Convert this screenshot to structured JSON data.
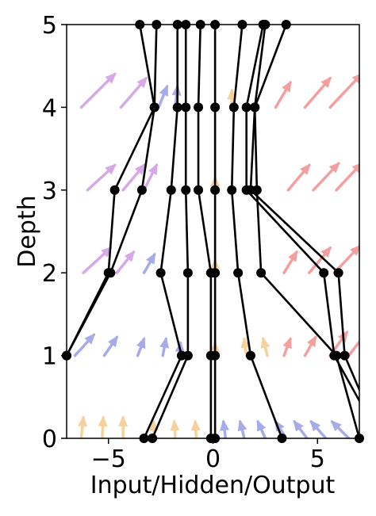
{
  "chart_data": {
    "type": "line",
    "xlabel": "Input/Hidden/Output",
    "ylabel": "Depth",
    "xlim": [
      -7,
      7
    ],
    "ylim": [
      0,
      5
    ],
    "xticks": [
      {
        "value": -5,
        "label": "−5"
      },
      {
        "value": 0,
        "label": "0"
      },
      {
        "value": 5,
        "label": "5"
      }
    ],
    "yticks": [
      {
        "value": 0,
        "label": "0"
      },
      {
        "value": 1,
        "label": "1"
      },
      {
        "value": 2,
        "label": "2"
      },
      {
        "value": 3,
        "label": "3"
      },
      {
        "value": 4,
        "label": "4"
      },
      {
        "value": 5,
        "label": "5"
      }
    ],
    "grid": false,
    "legend": "none",
    "trajectory_color": "#000000",
    "trajectories": [
      {
        "x": [
          -8.0,
          -7.0,
          -4.9,
          -3.4,
          -2.8,
          -3.5
        ]
      },
      {
        "x": [
          -8.0,
          -7.0,
          -5.0,
          -4.7,
          -2.8,
          -2.7
        ]
      },
      {
        "x": [
          -3.3,
          -1.5,
          -2.5,
          -2.0,
          -1.7,
          -1.7
        ]
      },
      {
        "x": [
          -2.9,
          -1.2,
          -1.2,
          -1.3,
          -1.3,
          -1.3
        ]
      },
      {
        "x": [
          -0.1,
          -0.1,
          -0.1,
          -0.7,
          -0.7,
          -0.6
        ]
      },
      {
        "x": [
          0.1,
          0.1,
          0.1,
          0.1,
          0.1,
          0.1
        ]
      },
      {
        "x": [
          3.3,
          1.8,
          1.2,
          0.9,
          1.0,
          1.4
        ]
      },
      {
        "x": [
          8.0,
          5.8,
          5.3,
          1.6,
          1.6,
          2.4
        ]
      },
      {
        "x": [
          7.0,
          5.9,
          2.3,
          2.1,
          2.0,
          3.5
        ]
      },
      {
        "x": [
          8.0,
          6.3,
          6.0,
          1.8,
          2.0,
          2.5
        ]
      }
    ],
    "vector_field": {
      "rows": [
        0,
        1,
        2,
        3,
        4
      ],
      "colors": {
        "left": "#c98be0",
        "mid_left": "#8a8fe0",
        "center": "#f5c27a",
        "right": "#f08080"
      },
      "arrows": [
        {
          "y": 0,
          "x": -7.3,
          "dx": 0.2,
          "dy": 0.25,
          "c": "center"
        },
        {
          "y": 0,
          "x": -6.3,
          "dx": 0.1,
          "dy": 0.25,
          "c": "center"
        },
        {
          "y": 0,
          "x": -5.3,
          "dx": 0.05,
          "dy": 0.25,
          "c": "center"
        },
        {
          "y": 0,
          "x": -4.3,
          "dx": 0.0,
          "dy": 0.25,
          "c": "center"
        },
        {
          "y": 0,
          "x": -2.8,
          "dx": -0.05,
          "dy": 0.2,
          "c": "center"
        },
        {
          "y": 0,
          "x": -1.8,
          "dx": -0.05,
          "dy": 0.2,
          "c": "center"
        },
        {
          "y": 0,
          "x": -0.8,
          "dx": -0.05,
          "dy": 0.2,
          "c": "center"
        },
        {
          "y": 0,
          "x": 0.6,
          "dx": -0.1,
          "dy": 0.2,
          "c": "mid_left"
        },
        {
          "y": 0,
          "x": 1.5,
          "dx": -0.2,
          "dy": 0.2,
          "c": "mid_left"
        },
        {
          "y": 0,
          "x": 2.5,
          "dx": -0.35,
          "dy": 0.2,
          "c": "mid_left"
        },
        {
          "y": 0,
          "x": 3.5,
          "dx": -0.5,
          "dy": 0.2,
          "c": "mid_left"
        },
        {
          "y": 0,
          "x": 4.5,
          "dx": -0.6,
          "dy": 0.2,
          "c": "mid_left"
        },
        {
          "y": 0,
          "x": 5.4,
          "dx": -0.7,
          "dy": 0.2,
          "c": "mid_left"
        },
        {
          "y": 0,
          "x": 6.5,
          "dx": -0.8,
          "dy": 0.2,
          "c": "mid_left"
        },
        {
          "y": 1,
          "x": -6.6,
          "dx": 0.9,
          "dy": 0.25,
          "c": "mid_left"
        },
        {
          "y": 1,
          "x": -5.2,
          "dx": 0.6,
          "dy": 0.22,
          "c": "mid_left"
        },
        {
          "y": 1,
          "x": -3.6,
          "dx": 0.3,
          "dy": 0.2,
          "c": "mid_left"
        },
        {
          "y": 1,
          "x": -2.4,
          "dx": 0.15,
          "dy": 0.2,
          "c": "mid_left"
        },
        {
          "y": 1,
          "x": -1.6,
          "dx": 0.05,
          "dy": 0.15,
          "c": "mid_left"
        },
        {
          "y": 1,
          "x": 0.1,
          "dx": 0.0,
          "dy": 0.15,
          "c": "center"
        },
        {
          "y": 1,
          "x": 1.6,
          "dx": -0.1,
          "dy": 0.2,
          "c": "center"
        },
        {
          "y": 1,
          "x": 2.6,
          "dx": -0.2,
          "dy": 0.2,
          "c": "center"
        },
        {
          "y": 1,
          "x": 3.4,
          "dx": 0.3,
          "dy": 0.2,
          "c": "right"
        },
        {
          "y": 1,
          "x": 4.4,
          "dx": 0.5,
          "dy": 0.22,
          "c": "right"
        },
        {
          "y": 1,
          "x": 5.6,
          "dx": 0.8,
          "dy": 0.28,
          "c": "right"
        },
        {
          "y": 1,
          "x": 6.5,
          "dx": 0.9,
          "dy": 0.3,
          "c": "right"
        },
        {
          "y": 2,
          "x": -6.2,
          "dx": 1.3,
          "dy": 0.3,
          "c": "left"
        },
        {
          "y": 2,
          "x": -4.6,
          "dx": 0.8,
          "dy": 0.25,
          "c": "left"
        },
        {
          "y": 2,
          "x": -3.3,
          "dx": 0.5,
          "dy": 0.22,
          "c": "mid_left"
        },
        {
          "y": 2,
          "x": 0.1,
          "dx": 0.0,
          "dy": 0.15,
          "c": "center"
        },
        {
          "y": 2,
          "x": 3.4,
          "dx": 0.6,
          "dy": 0.25,
          "c": "right"
        },
        {
          "y": 2,
          "x": 4.6,
          "dx": 1.0,
          "dy": 0.3,
          "c": "right"
        },
        {
          "y": 2,
          "x": 5.8,
          "dx": 1.2,
          "dy": 0.32,
          "c": "right"
        },
        {
          "y": 3,
          "x": -6.0,
          "dx": 1.3,
          "dy": 0.3,
          "c": "left"
        },
        {
          "y": 3,
          "x": -4.3,
          "dx": 1.0,
          "dy": 0.3,
          "c": "left"
        },
        {
          "y": 3,
          "x": -3.3,
          "dx": 0.6,
          "dy": 0.3,
          "c": "left"
        },
        {
          "y": 3,
          "x": 0.1,
          "dx": 0.0,
          "dy": 0.15,
          "c": "center"
        },
        {
          "y": 3,
          "x": 3.6,
          "dx": 1.0,
          "dy": 0.3,
          "c": "right"
        },
        {
          "y": 3,
          "x": 4.8,
          "dx": 1.2,
          "dy": 0.32,
          "c": "right"
        },
        {
          "y": 3,
          "x": 5.9,
          "dx": 1.2,
          "dy": 0.32,
          "c": "right"
        },
        {
          "y": 4,
          "x": -6.3,
          "dx": 1.6,
          "dy": 0.4,
          "c": "left"
        },
        {
          "y": 4,
          "x": -4.4,
          "dx": 1.2,
          "dy": 0.35,
          "c": "left"
        },
        {
          "y": 4,
          "x": -2.6,
          "dx": 0.4,
          "dy": 0.25,
          "c": "mid_left"
        },
        {
          "y": 4,
          "x": -1.8,
          "dx": 0.1,
          "dy": 0.25,
          "c": "mid_left"
        },
        {
          "y": 4,
          "x": 0.9,
          "dx": 0.0,
          "dy": 0.2,
          "c": "center"
        },
        {
          "y": 4,
          "x": 3.0,
          "dx": 0.7,
          "dy": 0.3,
          "c": "right"
        },
        {
          "y": 4,
          "x": 4.4,
          "dx": 1.2,
          "dy": 0.35,
          "c": "right"
        },
        {
          "y": 4,
          "x": 5.6,
          "dx": 1.5,
          "dy": 0.4,
          "c": "right"
        }
      ]
    }
  }
}
